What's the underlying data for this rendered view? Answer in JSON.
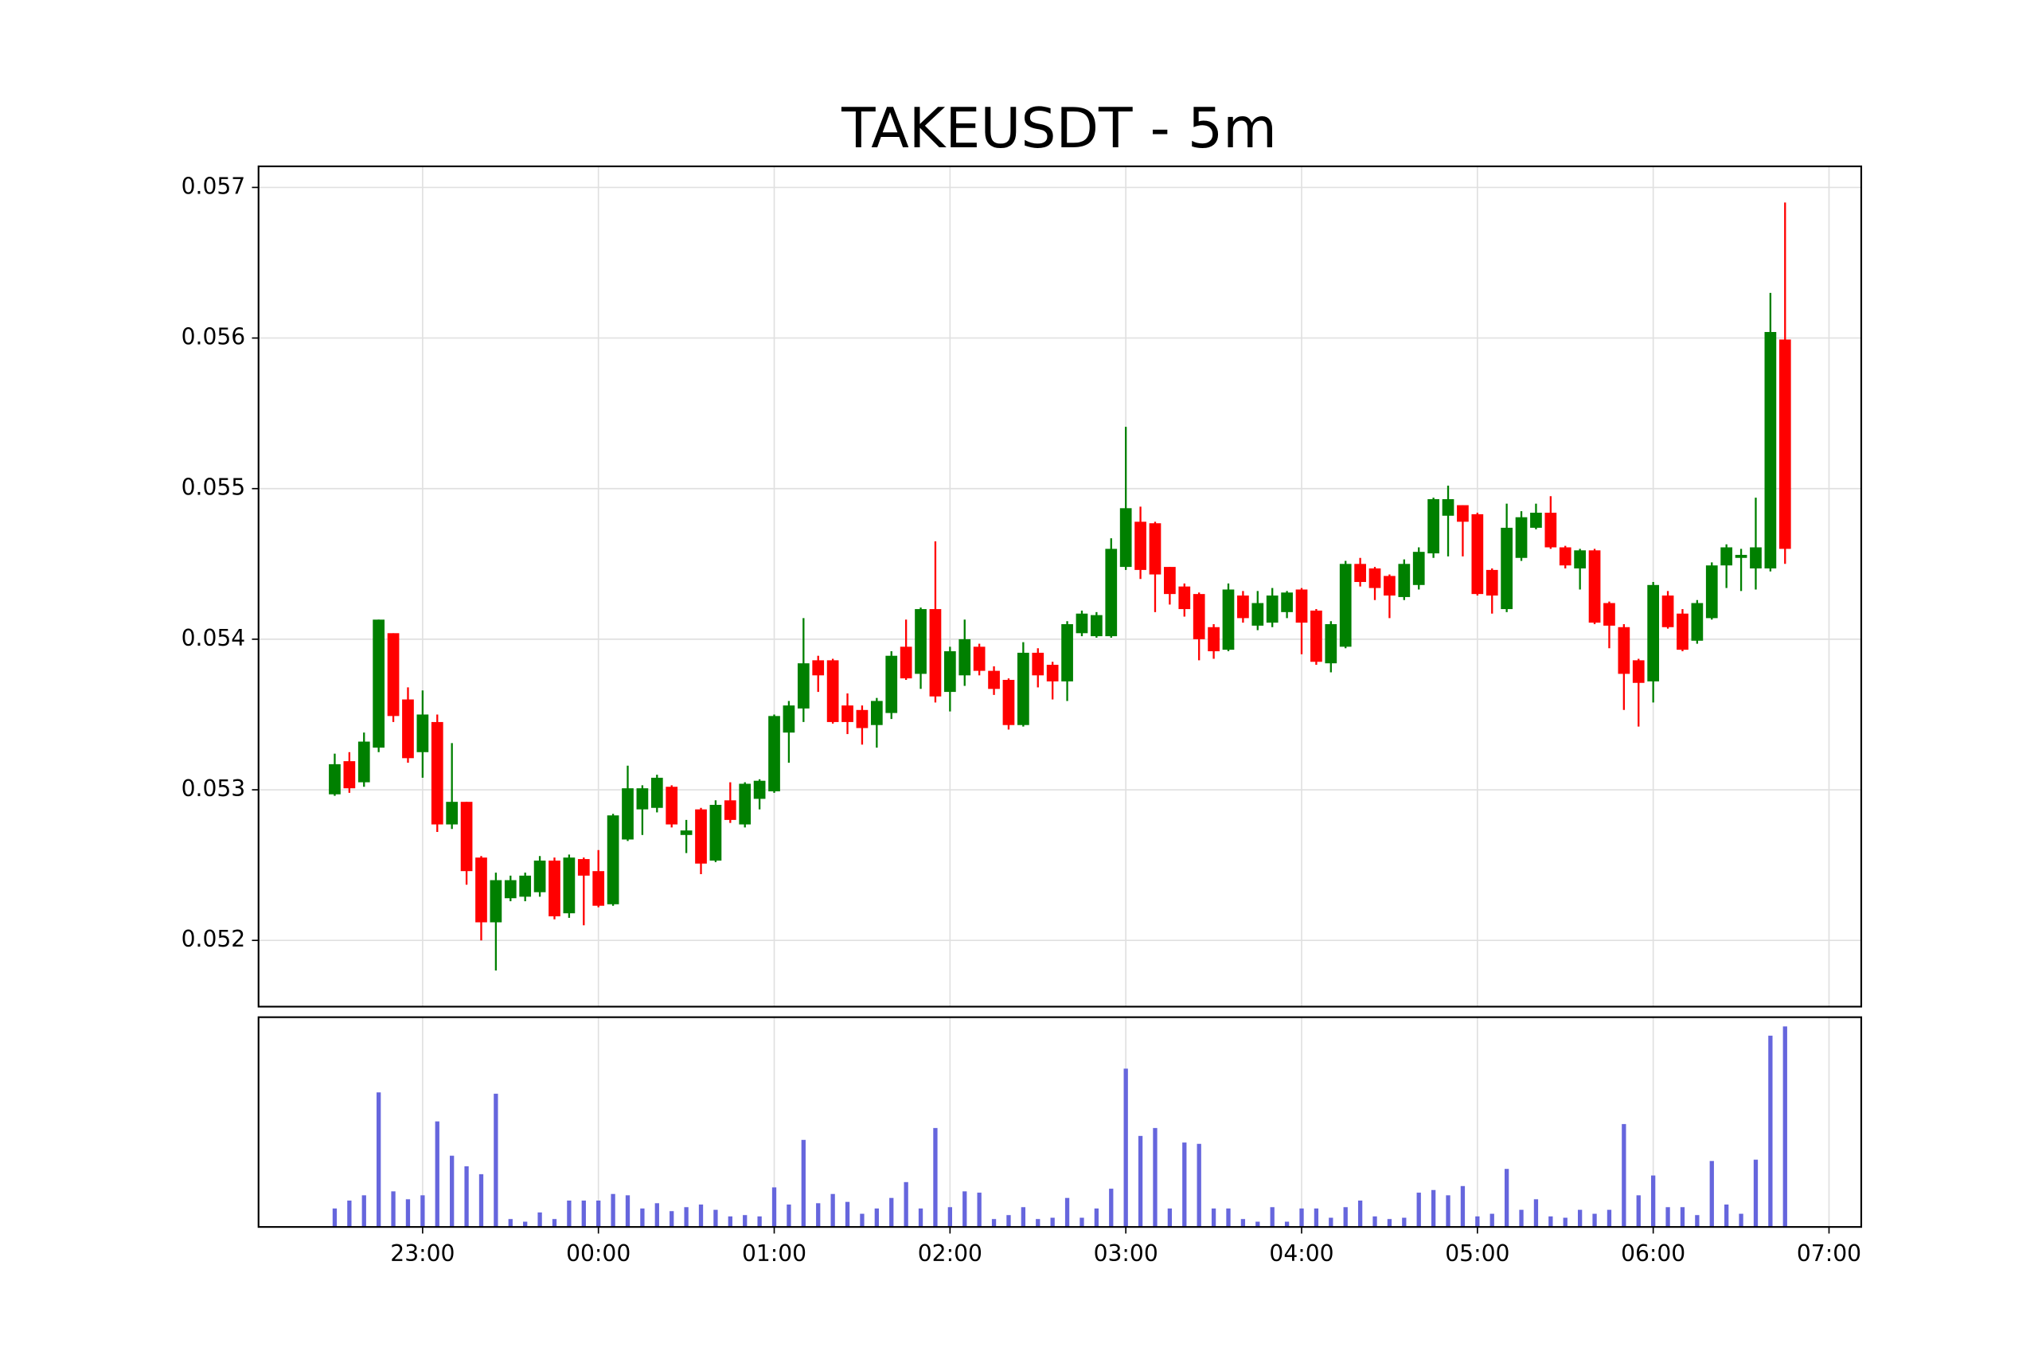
{
  "chart_data": {
    "type": "candlestick",
    "title": "TAKEUSDT - 5m",
    "x": [
      "22:30",
      "22:35",
      "22:40",
      "22:45",
      "22:50",
      "22:55",
      "23:00",
      "23:05",
      "23:10",
      "23:15",
      "23:20",
      "23:25",
      "23:30",
      "23:35",
      "23:40",
      "23:45",
      "23:50",
      "23:55",
      "00:00",
      "00:05",
      "00:10",
      "00:15",
      "00:20",
      "00:25",
      "00:30",
      "00:35",
      "00:40",
      "00:45",
      "00:50",
      "00:55",
      "01:00",
      "01:05",
      "01:10",
      "01:15",
      "01:20",
      "01:25",
      "01:30",
      "01:35",
      "01:40",
      "01:45",
      "01:50",
      "01:55",
      "02:00",
      "02:05",
      "02:10",
      "02:15",
      "02:20",
      "02:25",
      "02:30",
      "02:35",
      "02:40",
      "02:45",
      "02:50",
      "02:55",
      "03:00",
      "03:05",
      "03:10",
      "03:15",
      "03:20",
      "03:25",
      "03:30",
      "03:35",
      "03:40",
      "03:45",
      "03:50",
      "03:55",
      "04:00",
      "04:05",
      "04:10",
      "04:15",
      "04:20",
      "04:25",
      "04:30",
      "04:35",
      "04:40",
      "04:45",
      "04:50",
      "04:55",
      "05:00",
      "05:05",
      "05:10",
      "05:15",
      "05:20",
      "05:25",
      "05:30",
      "05:35",
      "05:40",
      "05:45",
      "05:50",
      "05:55",
      "06:00",
      "06:05",
      "06:10",
      "06:15",
      "06:20",
      "06:25",
      "06:30",
      "06:35",
      "06:40",
      "06:45"
    ],
    "open": [
      0.05297,
      0.05319,
      0.05305,
      0.05328,
      0.05404,
      0.0536,
      0.05325,
      0.05345,
      0.05277,
      0.05292,
      0.05255,
      0.05212,
      0.05228,
      0.05229,
      0.05232,
      0.05253,
      0.05218,
      0.05254,
      0.05246,
      0.05224,
      0.05267,
      0.05287,
      0.05288,
      0.05302,
      0.0527,
      0.05287,
      0.05253,
      0.05293,
      0.05277,
      0.05294,
      0.05299,
      0.05338,
      0.05354,
      0.05386,
      0.05386,
      0.05356,
      0.05353,
      0.05343,
      0.05351,
      0.05395,
      0.05377,
      0.0542,
      0.05365,
      0.05376,
      0.05395,
      0.05379,
      0.05373,
      0.05343,
      0.05391,
      0.05383,
      0.05372,
      0.05404,
      0.05402,
      0.05402,
      0.05448,
      0.05478,
      0.05477,
      0.05448,
      0.05435,
      0.0543,
      0.05408,
      0.05393,
      0.05429,
      0.05409,
      0.05411,
      0.05418,
      0.05433,
      0.05419,
      0.05384,
      0.05395,
      0.0545,
      0.05447,
      0.05442,
      0.05428,
      0.05436,
      0.05457,
      0.05482,
      0.05489,
      0.05483,
      0.05446,
      0.0542,
      0.05454,
      0.05474,
      0.05484,
      0.05461,
      0.05447,
      0.05459,
      0.05424,
      0.05408,
      0.05386,
      0.05372,
      0.05429,
      0.05417,
      0.05399,
      0.05414,
      0.05449,
      0.05454,
      0.05447,
      0.05447,
      0.05599
    ],
    "high": [
      0.05324,
      0.05325,
      0.05338,
      0.05413,
      0.05404,
      0.05368,
      0.05366,
      0.0535,
      0.05331,
      0.05292,
      0.05256,
      0.05245,
      0.05243,
      0.05245,
      0.05256,
      0.05255,
      0.05257,
      0.05255,
      0.0526,
      0.05284,
      0.05316,
      0.05303,
      0.0531,
      0.05303,
      0.0528,
      0.05288,
      0.05293,
      0.05305,
      0.05305,
      0.05307,
      0.0535,
      0.05359,
      0.05414,
      0.05389,
      0.05387,
      0.05364,
      0.05356,
      0.05361,
      0.05392,
      0.05413,
      0.05421,
      0.05465,
      0.05395,
      0.05413,
      0.05397,
      0.05382,
      0.05374,
      0.05398,
      0.05394,
      0.05385,
      0.05412,
      0.05419,
      0.05418,
      0.05467,
      0.05541,
      0.05488,
      0.05478,
      0.05448,
      0.05437,
      0.05431,
      0.0541,
      0.05437,
      0.05432,
      0.05432,
      0.05434,
      0.05432,
      0.05434,
      0.0542,
      0.05412,
      0.05452,
      0.05454,
      0.05448,
      0.05443,
      0.05453,
      0.05461,
      0.05494,
      0.05502,
      0.05489,
      0.05484,
      0.05447,
      0.0549,
      0.05485,
      0.0549,
      0.05495,
      0.05462,
      0.0546,
      0.0546,
      0.05425,
      0.0541,
      0.05387,
      0.05438,
      0.05432,
      0.0542,
      0.05426,
      0.05451,
      0.05463,
      0.0546,
      0.05494,
      0.0563,
      0.0569
    ],
    "low": [
      0.05296,
      0.05298,
      0.05302,
      0.05325,
      0.05345,
      0.05318,
      0.05308,
      0.05272,
      0.05274,
      0.05237,
      0.052,
      0.0518,
      0.05226,
      0.05226,
      0.05229,
      0.05214,
      0.05215,
      0.0521,
      0.05222,
      0.05223,
      0.05266,
      0.0527,
      0.05285,
      0.05275,
      0.05258,
      0.05244,
      0.05252,
      0.05278,
      0.05275,
      0.05287,
      0.05298,
      0.05318,
      0.05345,
      0.05365,
      0.05344,
      0.05337,
      0.0533,
      0.05328,
      0.05347,
      0.05373,
      0.05367,
      0.05358,
      0.05352,
      0.05369,
      0.05376,
      0.05363,
      0.0534,
      0.05342,
      0.05368,
      0.0536,
      0.05359,
      0.05402,
      0.05401,
      0.05401,
      0.05446,
      0.0544,
      0.05418,
      0.05423,
      0.05415,
      0.05386,
      0.05387,
      0.05392,
      0.05411,
      0.05406,
      0.05408,
      0.05414,
      0.0539,
      0.05383,
      0.05378,
      0.05394,
      0.05435,
      0.05426,
      0.05414,
      0.05426,
      0.05433,
      0.05454,
      0.05455,
      0.05455,
      0.05429,
      0.05417,
      0.05418,
      0.05452,
      0.05473,
      0.0546,
      0.05447,
      0.05433,
      0.0541,
      0.05394,
      0.05353,
      0.05342,
      0.05358,
      0.05407,
      0.05392,
      0.05397,
      0.05413,
      0.05434,
      0.05432,
      0.05433,
      0.05445,
      0.0545
    ],
    "close": [
      0.05317,
      0.05301,
      0.05332,
      0.05413,
      0.05349,
      0.05321,
      0.0535,
      0.05277,
      0.05292,
      0.05246,
      0.05212,
      0.0524,
      0.0524,
      0.05243,
      0.05253,
      0.05216,
      0.05255,
      0.05243,
      0.05223,
      0.05283,
      0.05301,
      0.05301,
      0.05308,
      0.05277,
      0.05273,
      0.05251,
      0.0529,
      0.0528,
      0.05304,
      0.05306,
      0.05349,
      0.05356,
      0.05384,
      0.05376,
      0.05345,
      0.05345,
      0.05341,
      0.05359,
      0.05389,
      0.05374,
      0.0542,
      0.05362,
      0.05392,
      0.054,
      0.05379,
      0.05367,
      0.05343,
      0.05391,
      0.05376,
      0.05372,
      0.0541,
      0.05417,
      0.05416,
      0.0546,
      0.05487,
      0.05446,
      0.05443,
      0.0543,
      0.0542,
      0.054,
      0.05392,
      0.05433,
      0.05414,
      0.05424,
      0.05429,
      0.05431,
      0.05411,
      0.05385,
      0.0541,
      0.0545,
      0.05438,
      0.05434,
      0.05429,
      0.0545,
      0.05458,
      0.05493,
      0.05493,
      0.05478,
      0.0543,
      0.05429,
      0.05474,
      0.05481,
      0.05484,
      0.05461,
      0.05449,
      0.05459,
      0.05411,
      0.05409,
      0.05377,
      0.05371,
      0.05436,
      0.05408,
      0.05393,
      0.05424,
      0.05449,
      0.05461,
      0.05456,
      0.05461,
      0.05604,
      0.0546
    ],
    "volume": [
      14,
      20,
      24,
      102,
      27,
      21,
      24,
      80,
      54,
      46,
      40,
      101,
      6,
      4,
      11,
      6,
      20,
      20,
      20,
      25,
      24,
      14,
      18,
      12,
      15,
      17,
      13,
      8,
      9,
      8,
      30,
      17,
      66,
      18,
      25,
      19,
      10,
      14,
      22,
      34,
      14,
      75,
      15,
      27,
      26,
      6,
      9,
      15,
      6,
      7,
      22,
      7,
      14,
      29,
      120,
      69,
      75,
      14,
      64,
      63,
      14,
      14,
      6,
      4,
      15,
      4,
      14,
      14,
      7,
      15,
      20,
      8,
      6,
      7,
      26,
      28,
      24,
      31,
      8,
      10,
      44,
      13,
      21,
      8,
      7,
      13,
      10,
      13,
      78,
      24,
      39,
      15,
      15,
      9,
      50,
      17,
      10,
      51,
      145,
      152
    ],
    "colors": {
      "up": "#008000",
      "down": "#ff0000",
      "volume": "#6666dd"
    },
    "ylim": [
      0.05156,
      0.05714
    ],
    "yticks": [
      0.052,
      0.053,
      0.054,
      0.055,
      0.056,
      0.057
    ],
    "xlim": [
      "22:04",
      "07:11"
    ],
    "xticks": [
      "23:00",
      "00:00",
      "01:00",
      "02:00",
      "03:00",
      "04:00",
      "05:00",
      "06:00",
      "07:00"
    ],
    "volume_ylim": [
      0,
      159
    ],
    "grid": true
  }
}
